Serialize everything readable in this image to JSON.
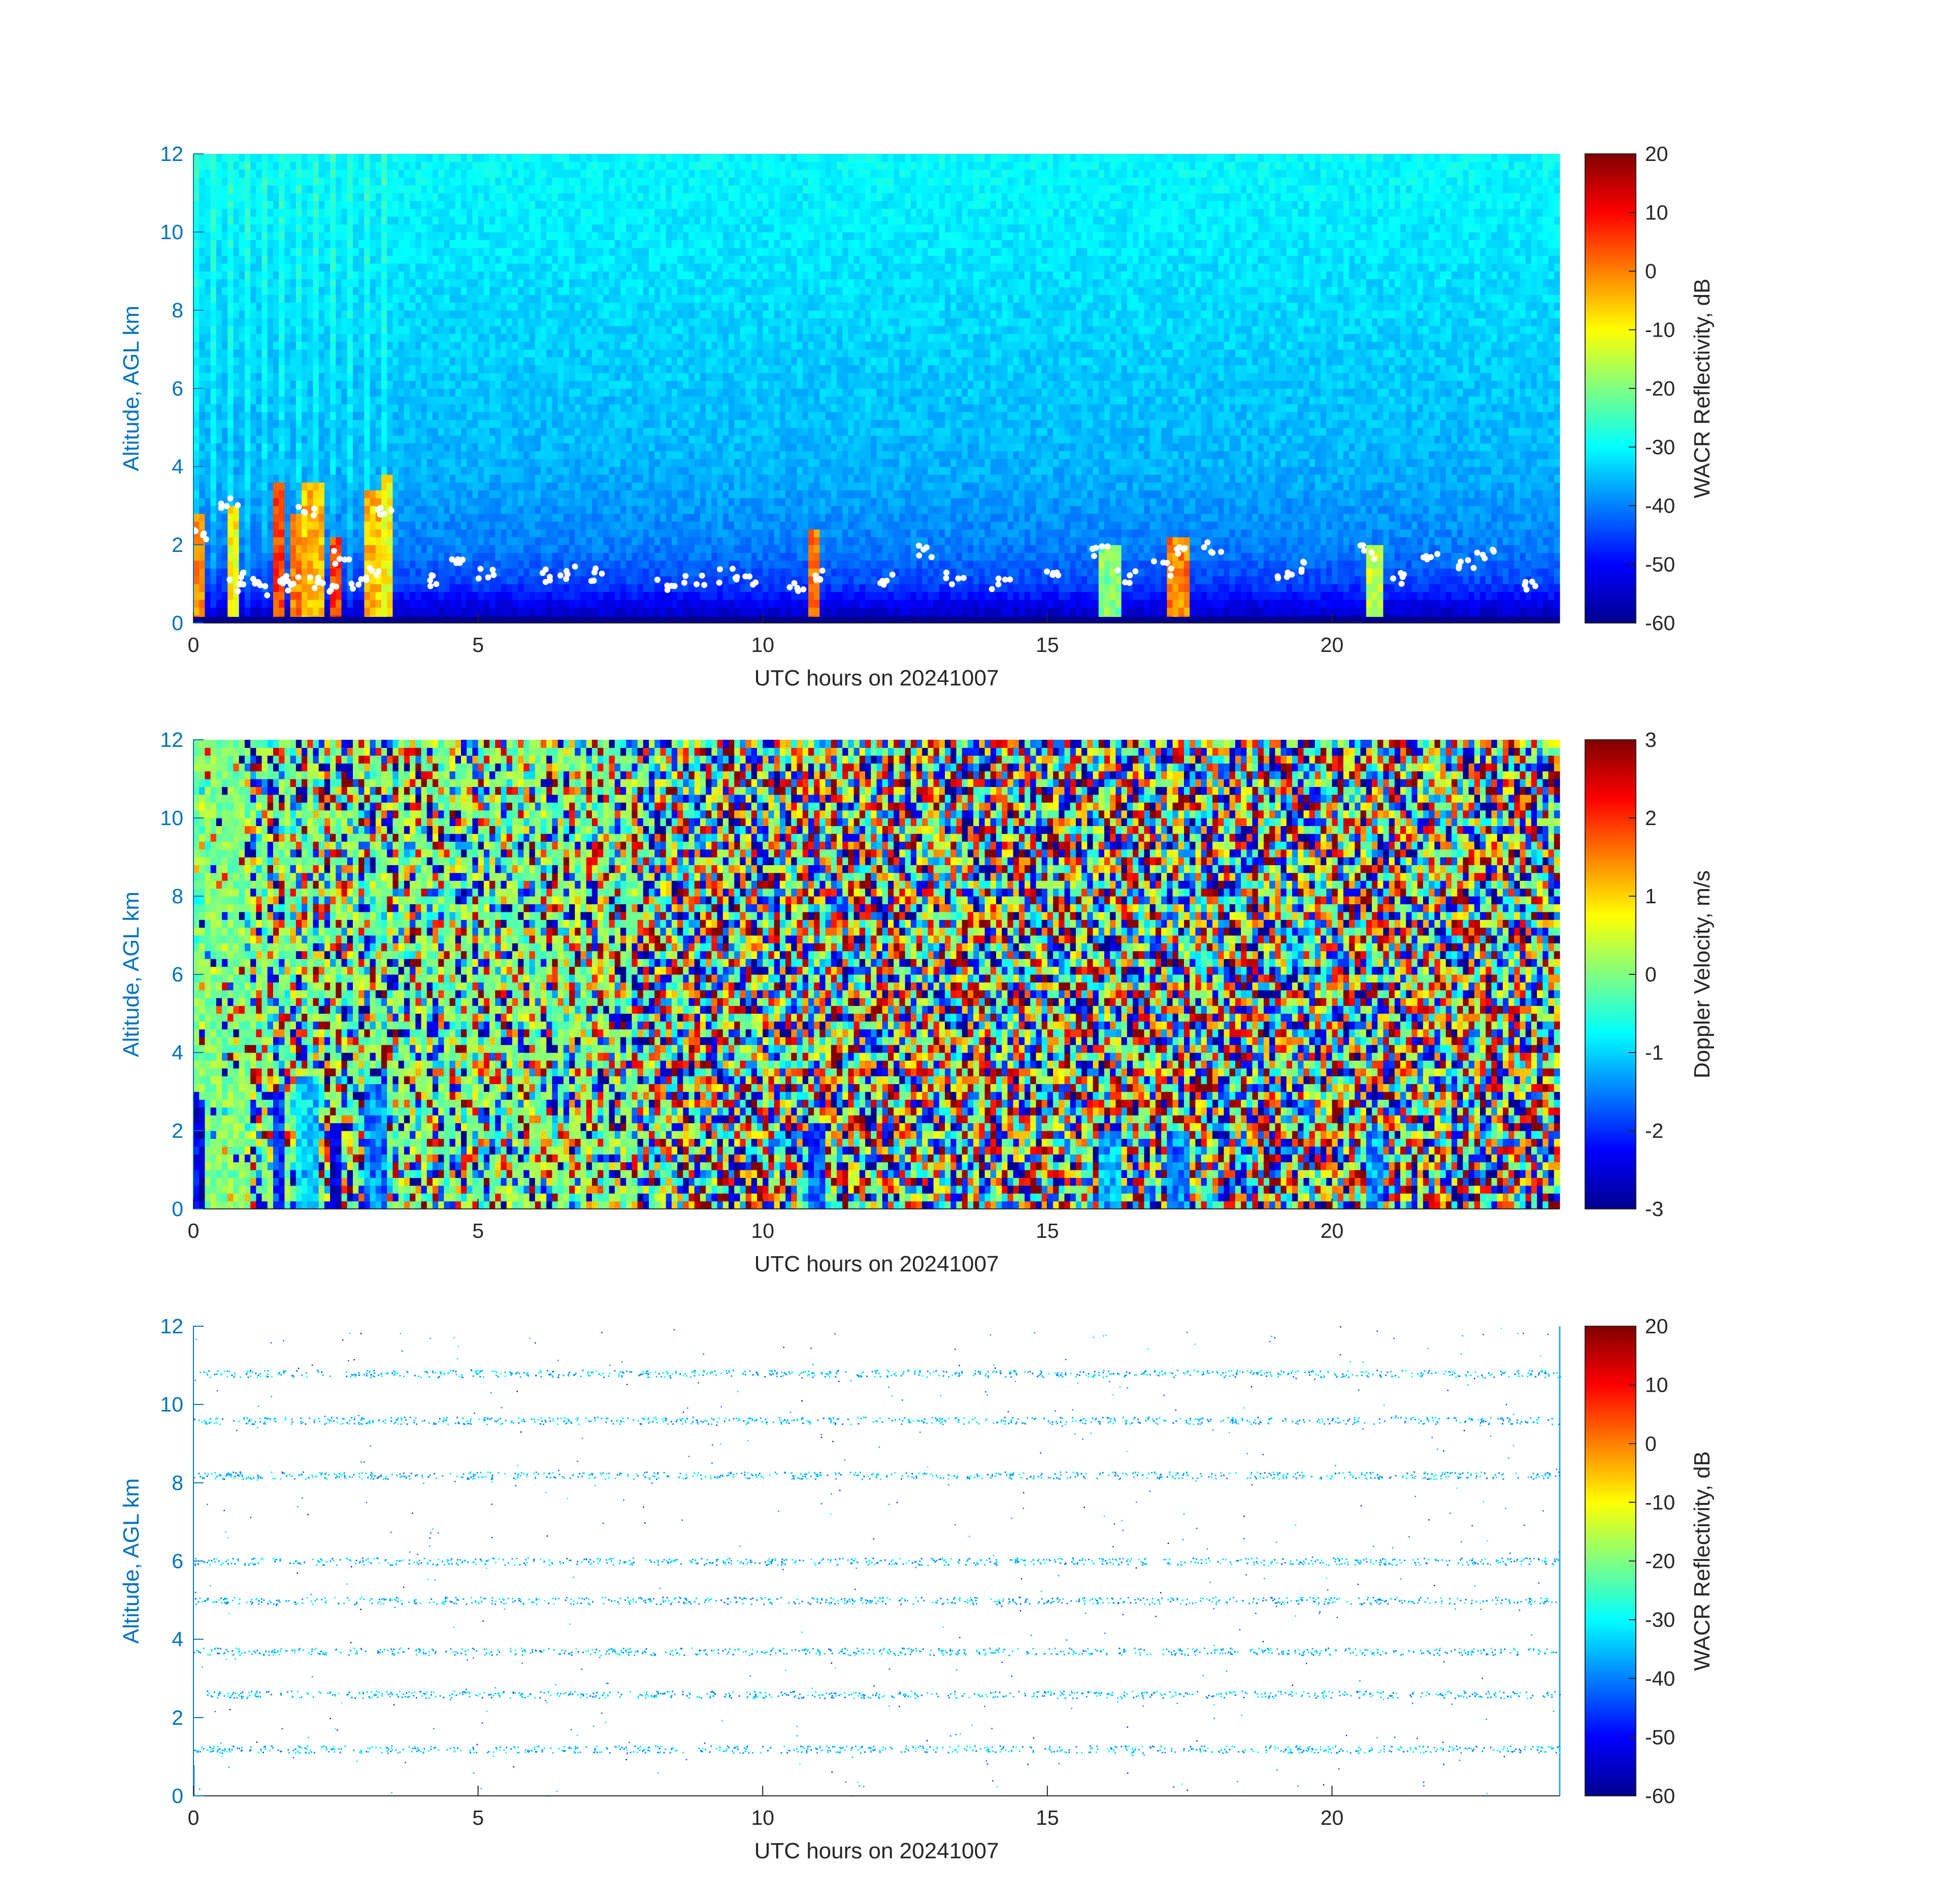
{
  "colors": {
    "axis_blue": "#0072BD",
    "text": "#262626",
    "cloud_marker": "#ffffff",
    "jet": [
      "#00008F",
      "#0000FF",
      "#0080FF",
      "#00FFFF",
      "#80FF80",
      "#FFFF00",
      "#FF8000",
      "#FF0000",
      "#800000"
    ]
  },
  "chart_data": [
    {
      "type": "heatmap",
      "panel": "top",
      "variable": "WACR Reflectivity",
      "xlabel": "UTC hours on 20241007",
      "ylabel": "Altitude, AGL km",
      "xlim": [
        0,
        24
      ],
      "ylim": [
        0,
        12
      ],
      "xticks": [
        "0",
        "5",
        "10",
        "15",
        "20"
      ],
      "yticks": [
        "0",
        "2",
        "4",
        "6",
        "8",
        "10",
        "12"
      ],
      "colorbar": {
        "label": "WACR Reflectivity, dB",
        "range": [
          -60,
          20
        ],
        "ticks": [
          "20",
          "10",
          "0",
          "-10",
          "-20",
          "-30",
          "-40",
          "-50",
          "-60"
        ]
      },
      "background_gradient_db": [
        [
          0,
          -58
        ],
        [
          1,
          -45
        ],
        [
          2,
          -40
        ],
        [
          4,
          -36
        ],
        [
          8,
          -33
        ],
        [
          12,
          -30
        ]
      ],
      "cloud_features": [
        {
          "x_start": 0.0,
          "x_end": 0.2,
          "alt_top": 2.8,
          "db": 5
        },
        {
          "x_start": 0.6,
          "x_end": 0.8,
          "alt_top": 3.0,
          "db": -5
        },
        {
          "x_start": 1.4,
          "x_end": 1.6,
          "alt_top": 3.6,
          "db": 10
        },
        {
          "x_start": 1.7,
          "x_end": 1.9,
          "alt_top": 2.8,
          "db": 5
        },
        {
          "x_start": 1.9,
          "x_end": 2.3,
          "alt_top": 3.5,
          "db": 0
        },
        {
          "x_start": 2.4,
          "x_end": 2.6,
          "alt_top": 2.2,
          "db": 10
        },
        {
          "x_start": 3.0,
          "x_end": 3.3,
          "alt_top": 3.4,
          "db": 0
        },
        {
          "x_start": 3.3,
          "x_end": 3.5,
          "alt_top": 3.7,
          "db": -5
        },
        {
          "x_start": 10.8,
          "x_end": 11.0,
          "alt_top": 2.4,
          "db": 5
        },
        {
          "x_start": 15.9,
          "x_end": 16.3,
          "alt_top": 2.0,
          "db": -15
        },
        {
          "x_start": 17.1,
          "x_end": 17.5,
          "alt_top": 2.1,
          "db": 5
        },
        {
          "x_start": 20.6,
          "x_end": 20.9,
          "alt_top": 1.9,
          "db": -10
        }
      ],
      "cloud_base_markers": [
        {
          "x": 0.1,
          "y": 2.2
        },
        {
          "x": 0.6,
          "y": 3.0
        },
        {
          "x": 0.8,
          "y": 1.0
        },
        {
          "x": 1.0,
          "y": 1.1
        },
        {
          "x": 1.2,
          "y": 0.9
        },
        {
          "x": 1.5,
          "y": 1.0
        },
        {
          "x": 1.7,
          "y": 1.1
        },
        {
          "x": 2.0,
          "y": 2.9
        },
        {
          "x": 2.1,
          "y": 1.0
        },
        {
          "x": 2.4,
          "y": 1.0
        },
        {
          "x": 2.6,
          "y": 1.7
        },
        {
          "x": 2.9,
          "y": 1.0
        },
        {
          "x": 3.1,
          "y": 1.3
        },
        {
          "x": 3.3,
          "y": 2.9
        },
        {
          "x": 4.3,
          "y": 1.1
        },
        {
          "x": 4.7,
          "y": 1.5
        },
        {
          "x": 5.1,
          "y": 1.3
        },
        {
          "x": 6.3,
          "y": 1.2
        },
        {
          "x": 6.6,
          "y": 1.3
        },
        {
          "x": 7.0,
          "y": 1.2
        },
        {
          "x": 8.3,
          "y": 1.0
        },
        {
          "x": 8.8,
          "y": 1.1
        },
        {
          "x": 9.4,
          "y": 1.2
        },
        {
          "x": 9.7,
          "y": 1.0
        },
        {
          "x": 10.6,
          "y": 1.0
        },
        {
          "x": 11.0,
          "y": 1.2
        },
        {
          "x": 12.2,
          "y": 1.1
        },
        {
          "x": 12.9,
          "y": 1.8
        },
        {
          "x": 13.4,
          "y": 1.1
        },
        {
          "x": 14.2,
          "y": 1.0
        },
        {
          "x": 15.1,
          "y": 1.2
        },
        {
          "x": 15.9,
          "y": 1.9
        },
        {
          "x": 16.4,
          "y": 1.2
        },
        {
          "x": 17.0,
          "y": 1.4
        },
        {
          "x": 17.4,
          "y": 1.9
        },
        {
          "x": 17.9,
          "y": 1.9
        },
        {
          "x": 19.1,
          "y": 1.3
        },
        {
          "x": 19.4,
          "y": 1.4
        },
        {
          "x": 20.6,
          "y": 1.8
        },
        {
          "x": 21.2,
          "y": 1.1
        },
        {
          "x": 21.7,
          "y": 1.8
        },
        {
          "x": 22.4,
          "y": 1.5
        },
        {
          "x": 22.7,
          "y": 1.7
        },
        {
          "x": 23.5,
          "y": 1.0
        }
      ]
    },
    {
      "type": "heatmap",
      "panel": "middle",
      "variable": "Doppler Velocity",
      "xlabel": "UTC hours on 20241007",
      "ylabel": "Altitude, AGL km",
      "xlim": [
        0,
        24
      ],
      "ylim": [
        0,
        12
      ],
      "xticks": [
        "0",
        "5",
        "10",
        "15",
        "20"
      ],
      "yticks": [
        "0",
        "2",
        "4",
        "6",
        "8",
        "10",
        "12"
      ],
      "colorbar": {
        "label": "Doppler Velocity, m/s",
        "range": [
          -3,
          3
        ],
        "ticks": [
          "3",
          "2",
          "1",
          "0",
          "-1",
          "-2",
          "-3"
        ]
      },
      "cloud_features": [
        {
          "x_start": 0.0,
          "x_end": 0.2,
          "alt_top": 2.8,
          "ms": -2.5
        },
        {
          "x_start": 1.4,
          "x_end": 1.6,
          "alt_top": 3.0,
          "ms": -2.0
        },
        {
          "x_start": 1.8,
          "x_end": 2.2,
          "alt_top": 3.4,
          "ms": -1.0
        },
        {
          "x_start": 2.4,
          "x_end": 2.6,
          "alt_top": 2.2,
          "ms": -2.5
        },
        {
          "x_start": 3.0,
          "x_end": 3.4,
          "alt_top": 3.3,
          "ms": -1.5
        },
        {
          "x_start": 10.8,
          "x_end": 11.1,
          "alt_top": 2.2,
          "ms": -1.8
        },
        {
          "x_start": 15.9,
          "x_end": 16.3,
          "alt_top": 2.0,
          "ms": -1.2
        },
        {
          "x_start": 17.1,
          "x_end": 17.5,
          "alt_top": 2.0,
          "ms": -1.5
        },
        {
          "x_start": 20.6,
          "x_end": 20.9,
          "alt_top": 1.9,
          "ms": -1.3
        }
      ]
    },
    {
      "type": "heatmap",
      "panel": "bottom",
      "variable": "WACR Reflectivity",
      "xlabel": "UTC hours on 20241007",
      "ylabel": "Altitude, AGL km",
      "xlim": [
        0,
        24
      ],
      "ylim": [
        0,
        12
      ],
      "xticks": [
        "0",
        "5",
        "10",
        "15",
        "20"
      ],
      "yticks": [
        "0",
        "2",
        "4",
        "6",
        "8",
        "10",
        "12"
      ],
      "colorbar": {
        "label": "WACR Reflectivity, dB",
        "range": [
          -60,
          20
        ],
        "ticks": [
          "20",
          "10",
          "0",
          "-10",
          "-20",
          "-30",
          "-40",
          "-50",
          "-60"
        ]
      },
      "sparse_bands_km": [
        1.2,
        2.6,
        3.7,
        5.0,
        6.0,
        8.2,
        9.6,
        10.8
      ],
      "sparse_band_db": -35
    }
  ]
}
